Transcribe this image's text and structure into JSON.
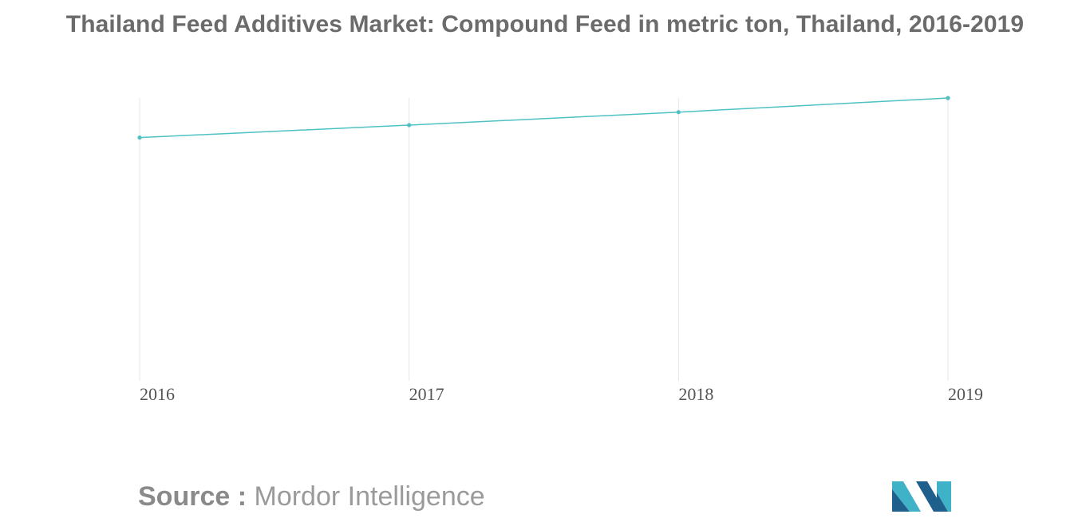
{
  "title": "Thailand Feed Additives Market: Compound Feed in metric ton, Thailand, 2016-2019",
  "source": {
    "label": "Source :",
    "name": "Mordor Intelligence"
  },
  "colors": {
    "line": "#4fc1c3",
    "gridline": "#e6e6e6",
    "title": "#6b6b6b",
    "logo_dark": "#1f5f8c",
    "logo_light": "#3fb2c8"
  },
  "logo": {
    "icon": "mordor-intelligence-logo-icon"
  },
  "chart_data": {
    "type": "line",
    "title": "Thailand Feed Additives Market: Compound Feed in metric ton, Thailand, 2016-2019",
    "xlabel": "",
    "ylabel": "",
    "categories": [
      "2016",
      "2017",
      "2018",
      "2019"
    ],
    "series": [
      {
        "values": [
          85.7,
          90.2,
          94.9,
          100
        ]
      }
    ],
    "ylim": [
      0,
      100
    ],
    "y_axis_labels_shown": false,
    "grid": "vertical",
    "legend": "none"
  }
}
